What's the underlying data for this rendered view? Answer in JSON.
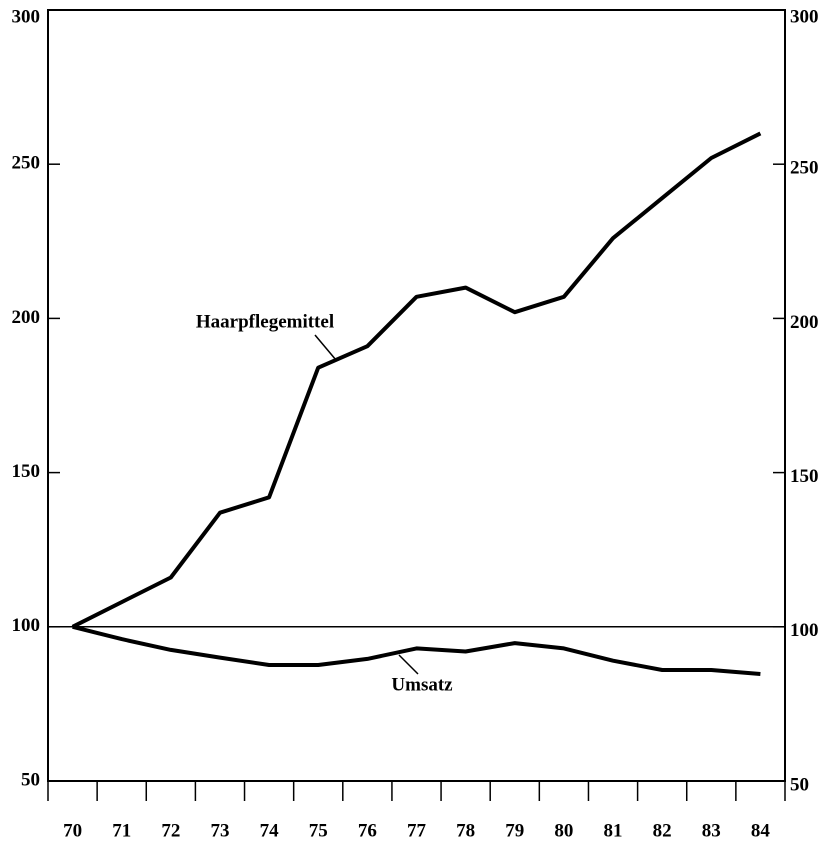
{
  "chart_data": {
    "type": "line",
    "categories": [
      "70",
      "71",
      "72",
      "73",
      "74",
      "75",
      "76",
      "77",
      "78",
      "79",
      "80",
      "81",
      "82",
      "83",
      "84"
    ],
    "series": [
      {
        "name": "Haarpflegemittel",
        "color": "#000000",
        "values": [
          100,
          108,
          116,
          137,
          142,
          184,
          191,
          207,
          210,
          202,
          207,
          226,
          239,
          252,
          260
        ]
      },
      {
        "name": "Umsatz",
        "color": "#000000",
        "values": [
          100,
          96,
          92.5,
          90,
          87.6,
          87.6,
          89.6,
          93,
          92,
          94.7,
          93,
          89,
          86,
          86,
          84.7
        ]
      }
    ],
    "ylim": [
      50,
      300
    ],
    "yticks": [
      50,
      100,
      150,
      200,
      250,
      300
    ],
    "reference_line": 100
  }
}
